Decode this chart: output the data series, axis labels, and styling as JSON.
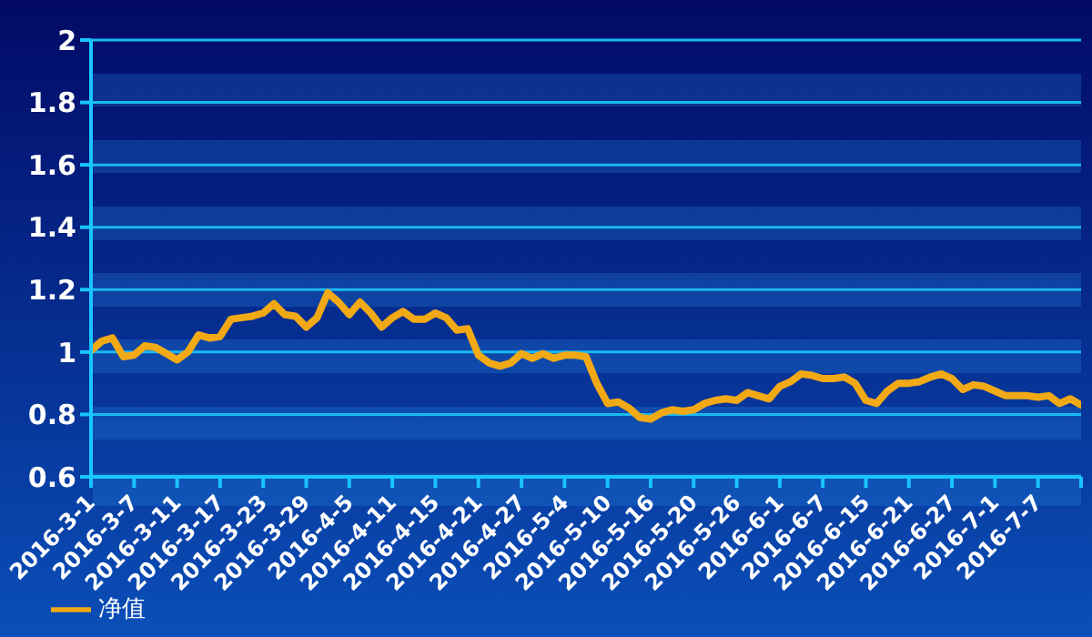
{
  "chart_data": {
    "type": "line",
    "categories": [
      "2016-3-1",
      null,
      null,
      null,
      "2016-3-7",
      null,
      null,
      null,
      "2016-3-11",
      null,
      null,
      null,
      "2016-3-17",
      null,
      null,
      null,
      "2016-3-23",
      null,
      null,
      null,
      "2016-3-29",
      null,
      null,
      null,
      "2016-4-5",
      null,
      null,
      null,
      "2016-4-11",
      null,
      null,
      null,
      "2016-4-15",
      null,
      null,
      null,
      "2016-4-21",
      null,
      null,
      null,
      "2016-4-27",
      null,
      null,
      null,
      "2016-5-4",
      null,
      null,
      null,
      "2016-5-10",
      null,
      null,
      null,
      "2016-5-16",
      null,
      null,
      null,
      "2016-5-20",
      null,
      null,
      null,
      "2016-5-26",
      null,
      null,
      null,
      "2016-6-1",
      null,
      null,
      null,
      "2016-6-7",
      null,
      null,
      null,
      "2016-6-15",
      null,
      null,
      null,
      "2016-6-21",
      null,
      null,
      null,
      "2016-6-27",
      null,
      null,
      null,
      "2016-7-1",
      null,
      null,
      null,
      "2016-7-7",
      null,
      null,
      null,
      null
    ],
    "series": [
      {
        "name": "净值",
        "color": "#f2a916",
        "values": [
          1.005,
          1.035,
          1.045,
          0.985,
          0.99,
          1.02,
          1.015,
          0.995,
          0.975,
          1.0,
          1.055,
          1.045,
          1.05,
          1.105,
          1.11,
          1.115,
          1.125,
          1.155,
          1.12,
          1.115,
          1.08,
          1.11,
          1.19,
          1.16,
          1.12,
          1.16,
          1.125,
          1.08,
          1.11,
          1.13,
          1.105,
          1.105,
          1.125,
          1.11,
          1.07,
          1.075,
          0.99,
          0.965,
          0.955,
          0.965,
          0.995,
          0.98,
          0.995,
          0.98,
          0.99,
          0.99,
          0.985,
          0.9,
          0.835,
          0.84,
          0.82,
          0.79,
          0.785,
          0.805,
          0.815,
          0.81,
          0.815,
          0.835,
          0.845,
          0.85,
          0.845,
          0.87,
          0.86,
          0.85,
          0.89,
          0.905,
          0.93,
          0.925,
          0.915,
          0.915,
          0.92,
          0.9,
          0.845,
          0.835,
          0.875,
          0.9,
          0.9,
          0.905,
          0.92,
          0.93,
          0.915,
          0.88,
          0.895,
          0.89,
          0.875,
          0.86,
          0.86,
          0.86,
          0.855,
          0.86,
          0.835,
          0.85,
          0.83
        ]
      }
    ],
    "ylim": [
      0.6,
      2
    ],
    "yticks": [
      0.6,
      0.8,
      1,
      1.2,
      1.4,
      1.6,
      1.8,
      2
    ],
    "grid": "y",
    "legend": "bottom left"
  }
}
